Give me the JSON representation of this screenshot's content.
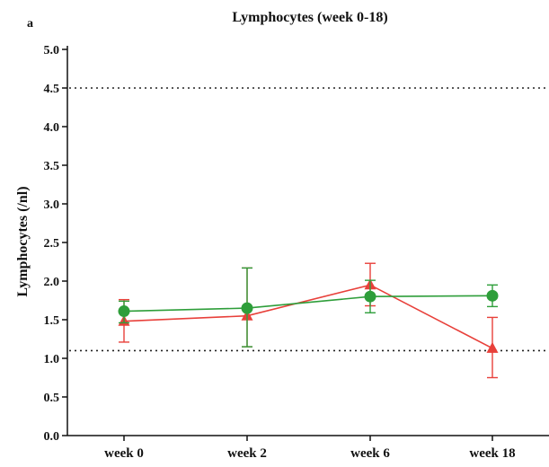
{
  "panel_label": "a",
  "chart_data": {
    "type": "line",
    "title": "Lymphocytes (week 0-18)",
    "xlabel": "",
    "ylabel": "Lymphocytes (/nl)",
    "categories": [
      "week 0",
      "week 2",
      "week 6",
      "week 18"
    ],
    "ylim": [
      0,
      5.0
    ],
    "yticks": [
      "0.0",
      "0.5",
      "1.0",
      "1.5",
      "2.0",
      "2.5",
      "3.0",
      "3.5",
      "4.0",
      "4.5",
      "5.0"
    ],
    "reference_lines": [
      4.5,
      1.1
    ],
    "grid": false,
    "series": [
      {
        "color": "#e8403a",
        "marker": "triangle",
        "values": [
          1.48,
          1.55,
          1.95,
          1.13
        ],
        "error_low": [
          1.21,
          1.15,
          1.68,
          0.75
        ],
        "error_high": [
          1.76,
          2.17,
          2.23,
          1.53
        ]
      },
      {
        "color": "#2e9e3a",
        "marker": "circle",
        "values": [
          1.61,
          1.65,
          1.8,
          1.81
        ],
        "error_low": [
          1.46,
          1.15,
          1.59,
          1.67
        ],
        "error_high": [
          1.74,
          2.17,
          2.01,
          1.95
        ]
      }
    ]
  }
}
